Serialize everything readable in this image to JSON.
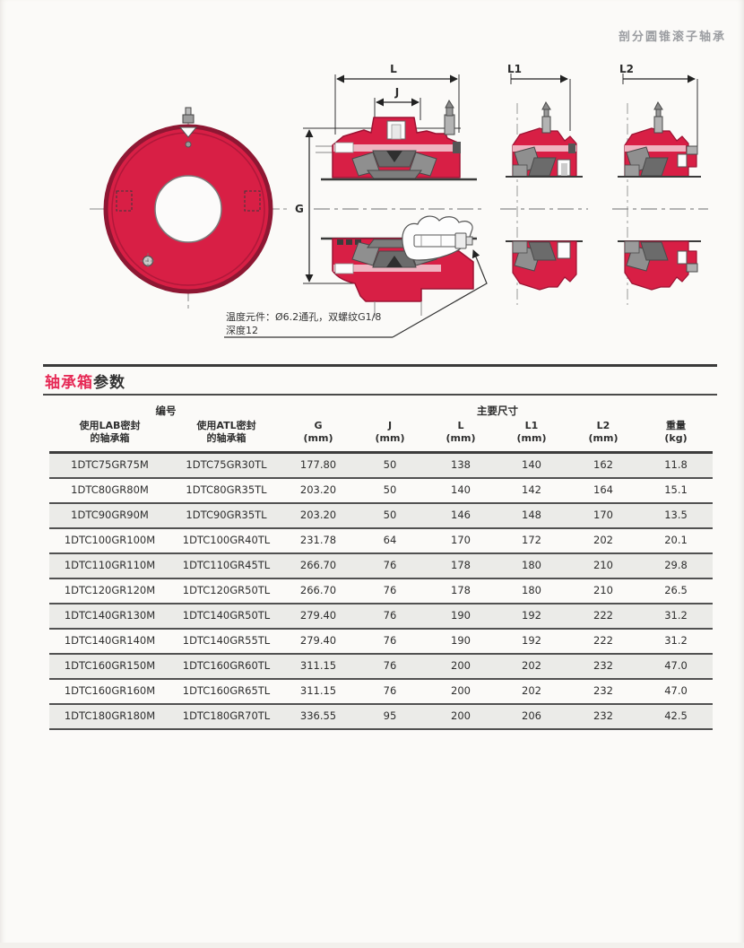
{
  "page": {
    "tag": "剖分圆锥滚子轴承"
  },
  "section_title": {
    "red": "轴承箱",
    "dark": "参数"
  },
  "drawing": {
    "labels": {
      "g": "G",
      "l": "L",
      "j": "J",
      "l1": "L1",
      "l2": "L2"
    },
    "note_line1": "温度元件：Ø6.2通孔，双螺纹G1/8",
    "note_line2": "深度12"
  },
  "colors": {
    "housing_red": "#d81f45",
    "title_red": "#e62a56",
    "row_alt": "#ebebe8"
  },
  "table": {
    "header": {
      "group_no": "编号",
      "group_dims": "主要尺寸",
      "cols": [
        "使用LAB密封\n的轴承箱",
        "使用ATL密封\n的轴承箱",
        "G\n(mm)",
        "J\n(mm)",
        "L\n(mm)",
        "L1\n(mm)",
        "L2\n(mm)",
        "重量\n(kg)"
      ]
    },
    "col_keys": [
      "lab",
      "atl",
      "g",
      "j",
      "l",
      "l1",
      "l2",
      "weight"
    ],
    "rows": [
      {
        "lab": "1DTC75GR75M",
        "atl": "1DTC75GR30TL",
        "g": "177.80",
        "j": "50",
        "l": "138",
        "l1": "140",
        "l2": "162",
        "weight": "11.8"
      },
      {
        "lab": "1DTC80GR80M",
        "atl": "1DTC80GR35TL",
        "g": "203.20",
        "j": "50",
        "l": "140",
        "l1": "142",
        "l2": "164",
        "weight": "15.1"
      },
      {
        "lab": "1DTC90GR90M",
        "atl": "1DTC90GR35TL",
        "g": "203.20",
        "j": "50",
        "l": "146",
        "l1": "148",
        "l2": "170",
        "weight": "13.5"
      },
      {
        "lab": "1DTC100GR100M",
        "atl": "1DTC100GR40TL",
        "g": "231.78",
        "j": "64",
        "l": "170",
        "l1": "172",
        "l2": "202",
        "weight": "20.1"
      },
      {
        "lab": "1DTC110GR110M",
        "atl": "1DTC110GR45TL",
        "g": "266.70",
        "j": "76",
        "l": "178",
        "l1": "180",
        "l2": "210",
        "weight": "29.8"
      },
      {
        "lab": "1DTC120GR120M",
        "atl": "1DTC120GR50TL",
        "g": "266.70",
        "j": "76",
        "l": "178",
        "l1": "180",
        "l2": "210",
        "weight": "26.5"
      },
      {
        "lab": "1DTC140GR130M",
        "atl": "1DTC140GR50TL",
        "g": "279.40",
        "j": "76",
        "l": "190",
        "l1": "192",
        "l2": "222",
        "weight": "31.2"
      },
      {
        "lab": "1DTC140GR140M",
        "atl": "1DTC140GR55TL",
        "g": "279.40",
        "j": "76",
        "l": "190",
        "l1": "192",
        "l2": "222",
        "weight": "31.2"
      },
      {
        "lab": "1DTC160GR150M",
        "atl": "1DTC160GR60TL",
        "g": "311.15",
        "j": "76",
        "l": "200",
        "l1": "202",
        "l2": "232",
        "weight": "47.0"
      },
      {
        "lab": "1DTC160GR160M",
        "atl": "1DTC160GR65TL",
        "g": "311.15",
        "j": "76",
        "l": "200",
        "l1": "202",
        "l2": "232",
        "weight": "47.0"
      },
      {
        "lab": "1DTC180GR180M",
        "atl": "1DTC180GR70TL",
        "g": "336.55",
        "j": "95",
        "l": "200",
        "l1": "206",
        "l2": "232",
        "weight": "42.5"
      }
    ]
  }
}
